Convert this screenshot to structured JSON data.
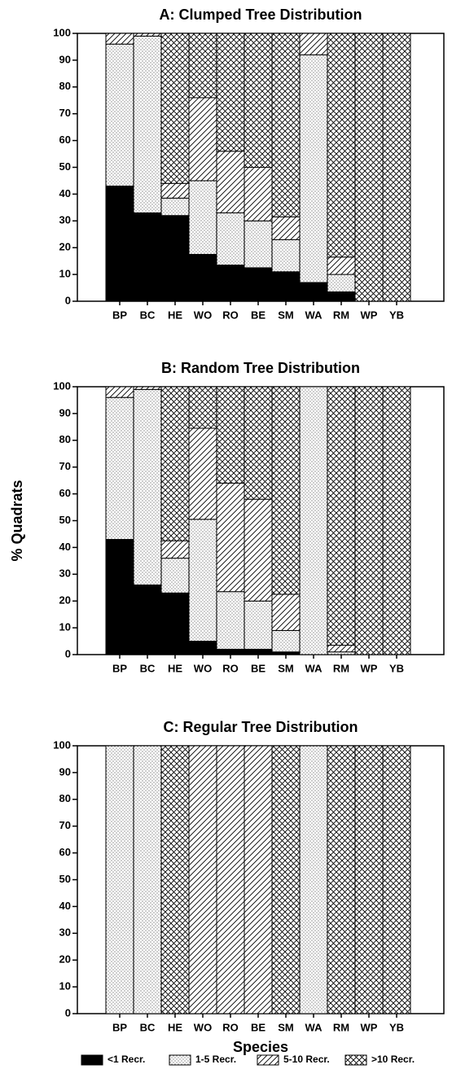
{
  "chart_data": [
    {
      "type": "stacked-bar",
      "title": "A: Clumped Tree Distribution",
      "categories": [
        "BP",
        "BC",
        "HE",
        "WO",
        "RO",
        "BE",
        "SM",
        "WA",
        "RM",
        "WP",
        "YB"
      ],
      "series": [
        {
          "pattern": "solid",
          "color": "#000000",
          "values": [
            43,
            33,
            32,
            17.5,
            13.5,
            12.5,
            11,
            7,
            3.5,
            0,
            0
          ]
        },
        {
          "pattern": "dots",
          "color": "#000000",
          "values": [
            53,
            66,
            6.5,
            27.5,
            19.5,
            17.5,
            12,
            85,
            6.5,
            0,
            0
          ]
        },
        {
          "pattern": "diagonal",
          "color": "#000000",
          "values": [
            4,
            1,
            5.5,
            31,
            23,
            20,
            8.5,
            8,
            6.5,
            0,
            0
          ]
        },
        {
          "pattern": "crosshatch",
          "color": "#000000",
          "values": [
            0,
            0,
            56,
            24,
            44,
            50,
            68.5,
            0,
            83.5,
            100,
            100
          ]
        }
      ],
      "ylim": [
        0,
        100
      ],
      "yticks": [
        0,
        10,
        20,
        30,
        40,
        50,
        60,
        70,
        80,
        90,
        100
      ]
    },
    {
      "type": "stacked-bar",
      "title": "B: Random Tree Distribution",
      "ylabel": "% Quadrats",
      "categories": [
        "BP",
        "BC",
        "HE",
        "WO",
        "RO",
        "BE",
        "SM",
        "WA",
        "RM",
        "WP",
        "YB"
      ],
      "series": [
        {
          "pattern": "solid",
          "color": "#000000",
          "values": [
            43,
            26,
            23,
            5,
            2,
            2,
            1,
            0,
            0,
            0,
            0
          ]
        },
        {
          "pattern": "dots",
          "color": "#000000",
          "values": [
            53,
            73,
            13,
            45.5,
            21.5,
            18,
            8,
            100,
            1,
            0,
            0
          ]
        },
        {
          "pattern": "diagonal",
          "color": "#000000",
          "values": [
            4,
            1,
            6.5,
            34,
            40.5,
            38,
            13.5,
            0,
            2.5,
            0,
            0
          ]
        },
        {
          "pattern": "crosshatch",
          "color": "#000000",
          "values": [
            0,
            0,
            57.5,
            15.5,
            36,
            42,
            77.5,
            0,
            96.5,
            100,
            100
          ]
        }
      ],
      "ylim": [
        0,
        100
      ],
      "yticks": [
        0,
        10,
        20,
        30,
        40,
        50,
        60,
        70,
        80,
        90,
        100
      ]
    },
    {
      "type": "stacked-bar",
      "title": "C: Regular Tree Distribution",
      "xlabel": "Species",
      "categories": [
        "BP",
        "BC",
        "HE",
        "WO",
        "RO",
        "BE",
        "SM",
        "WA",
        "RM",
        "WP",
        "YB"
      ],
      "series": [
        {
          "name": "<1 Recr.",
          "pattern": "solid",
          "color": "#000000",
          "values": [
            0,
            0,
            0,
            0,
            0,
            0,
            0,
            0,
            0,
            0,
            0
          ]
        },
        {
          "name": "1-5 Recr.",
          "pattern": "dots",
          "color": "#000000",
          "values": [
            100,
            100,
            0,
            0,
            0,
            0,
            0,
            100,
            0,
            0,
            0
          ]
        },
        {
          "name": "5-10 Recr.",
          "pattern": "diagonal",
          "color": "#000000",
          "values": [
            0,
            0,
            0,
            100,
            100,
            100,
            0,
            0,
            0,
            0,
            0
          ]
        },
        {
          "name": ">10 Recr.",
          "pattern": "crosshatch",
          "color": "#000000",
          "values": [
            0,
            0,
            100,
            0,
            0,
            0,
            100,
            0,
            100,
            100,
            100
          ]
        }
      ],
      "ylim": [
        0,
        100
      ],
      "yticks": [
        0,
        10,
        20,
        30,
        40,
        50,
        60,
        70,
        80,
        90,
        100
      ]
    }
  ]
}
